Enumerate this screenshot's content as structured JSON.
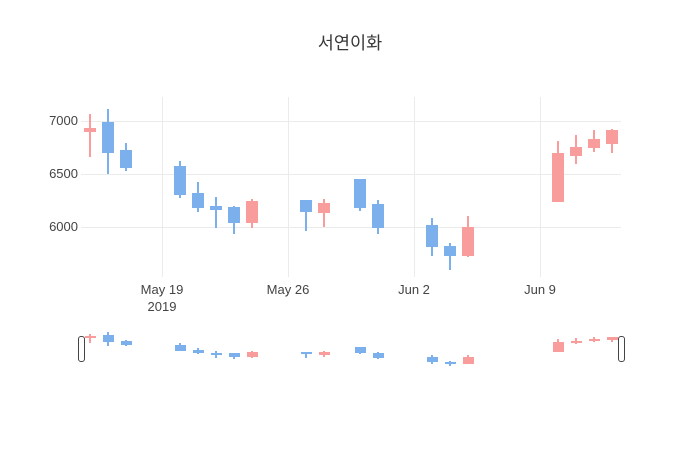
{
  "title": "서연이화",
  "colors": {
    "increasing": "#f89c9c",
    "decreasing": "#7cb0ec",
    "grid": "#ebebeb",
    "tick_text": "#444444",
    "title_text": "#383838",
    "background": "#ffffff",
    "slider_handle_border": "#444444"
  },
  "y_axis": {
    "ticks": [
      {
        "label": "7000",
        "value": 7000
      },
      {
        "label": "6500",
        "value": 6500
      },
      {
        "label": "6000",
        "value": 6000
      }
    ]
  },
  "x_axis": {
    "ticks": [
      {
        "label": "May 19",
        "sublabel": "2019",
        "date": "2019-05-19"
      },
      {
        "label": "May 26",
        "sublabel": "",
        "date": "2019-05-26"
      },
      {
        "label": "Jun 2",
        "sublabel": "",
        "date": "2019-06-02"
      },
      {
        "label": "Jun 9",
        "sublabel": "",
        "date": "2019-06-09"
      }
    ]
  },
  "chart_data": {
    "type": "candlestick",
    "title": "서연이화",
    "x": [
      "2019-05-15",
      "2019-05-16",
      "2019-05-17",
      "2019-05-20",
      "2019-05-21",
      "2019-05-22",
      "2019-05-23",
      "2019-05-24",
      "2019-05-27",
      "2019-05-28",
      "2019-05-30",
      "2019-05-31",
      "2019-06-03",
      "2019-06-04",
      "2019-06-05",
      "2019-06-10",
      "2019-06-11",
      "2019-06-12",
      "2019-06-13"
    ],
    "open": [
      6900,
      6990,
      6730,
      6580,
      6320,
      6200,
      6190,
      6040,
      6260,
      6130,
      6460,
      6220,
      6020,
      5820,
      5730,
      6240,
      6670,
      6750,
      6790
    ],
    "high": [
      7070,
      7120,
      6800,
      6630,
      6430,
      6290,
      6200,
      6270,
      6260,
      6270,
      6460,
      6260,
      6090,
      5850,
      6110,
      6810,
      6870,
      6920,
      6930
    ],
    "low": [
      6660,
      6500,
      6530,
      6280,
      6140,
      5990,
      5940,
      5990,
      5960,
      6000,
      6150,
      5940,
      5730,
      5600,
      5720,
      6240,
      6600,
      6710,
      6700
    ],
    "close": [
      6940,
      6700,
      6560,
      6300,
      6180,
      6160,
      6040,
      6250,
      6140,
      6230,
      6180,
      5990,
      5810,
      5730,
      6000,
      6700,
      6760,
      6830,
      6920
    ],
    "increasing_color": "#f89c9c",
    "decreasing_color": "#7cb0ec",
    "y_range": [
      5530,
      7230
    ],
    "x_range": [
      "2019-05-14T12:00:00Z",
      "2019-06-13T12:00:00Z"
    ],
    "grid": true,
    "legend": "none",
    "rangeslider": true
  }
}
